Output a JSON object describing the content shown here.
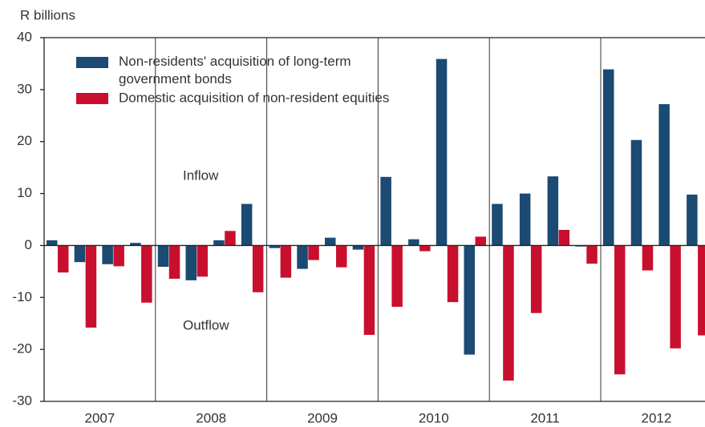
{
  "chart_data": {
    "type": "bar",
    "y_axis_label": "R billions",
    "categories": [
      "2007",
      "2008",
      "2009",
      "2010",
      "2011",
      "2012"
    ],
    "series": [
      {
        "name": "Non-residents' acquisition of  long-term government bonds",
        "color": "#1b4a72",
        "values": [
          [
            1,
            -3.2,
            -3.6,
            0.5
          ],
          [
            -4.1,
            -6.7,
            1,
            8
          ],
          [
            -0.5,
            -4.5,
            1.5,
            -0.8
          ],
          [
            13.2,
            1.2,
            35.9,
            -21
          ],
          [
            8,
            10,
            13.3,
            -0.2
          ],
          [
            33.9,
            20.3,
            27.2,
            9.8
          ]
        ]
      },
      {
        "name": "Domestic acquisition of non-resident equities",
        "color": "#c8102e",
        "values": [
          [
            -5.2,
            -15.8,
            -4,
            -11
          ],
          [
            -6.4,
            -6,
            2.8,
            -9
          ],
          [
            -6.2,
            -2.8,
            -4.2,
            -17.2
          ],
          [
            -11.8,
            -1.1,
            -10.9,
            1.7
          ],
          [
            -26,
            -13,
            3,
            -3.5
          ],
          [
            -24.8,
            -4.8,
            -19.8,
            -17.3
          ]
        ]
      }
    ],
    "annotations": [
      "Inflow",
      "Outflow"
    ],
    "ylim": [
      -30,
      40
    ],
    "yticks": [
      -30,
      -20,
      -10,
      0,
      10,
      20,
      30,
      40
    ]
  }
}
